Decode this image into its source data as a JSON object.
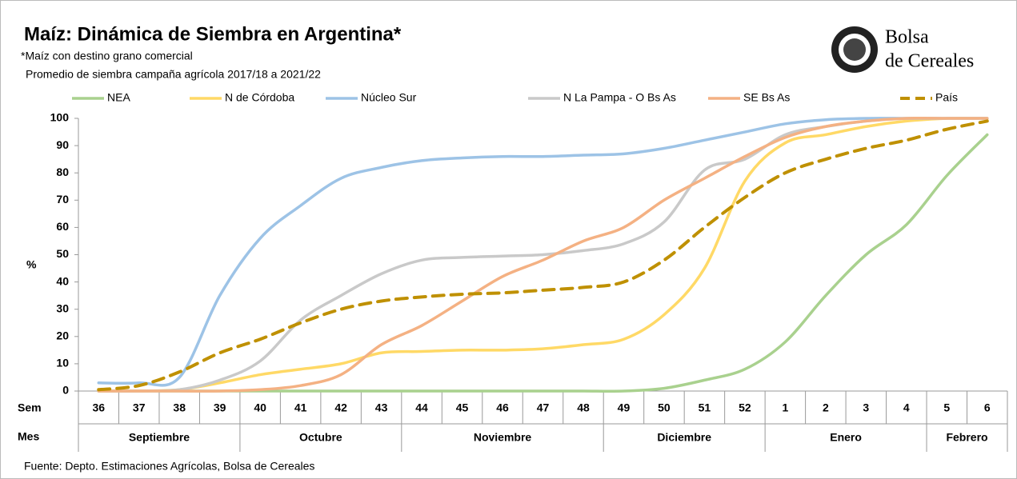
{
  "chart_data": {
    "type": "line",
    "title": "Maíz: Dinámica de Siembra en Argentina*",
    "subtitle": "*Maíz con destino grano comercial",
    "note": "Promedio de siembra campaña agrícola 2017/18  a 2021/22",
    "source": "Fuente: Depto. Estimaciones Agrícolas, Bolsa de Cereales",
    "logo": [
      "Bolsa",
      "de Cereales"
    ],
    "y_label": "%",
    "x_label": "Sem",
    "x2_label": "Mes",
    "categories": [
      "36",
      "37",
      "38",
      "39",
      "40",
      "41",
      "42",
      "43",
      "44",
      "45",
      "46",
      "47",
      "48",
      "49",
      "50",
      "51",
      "52",
      "1",
      "2",
      "3",
      "4",
      "5",
      "6"
    ],
    "x2_categories": [
      "Septiembre",
      "Septiembre",
      "Septiembre",
      "Septiembre",
      "Octubre",
      "Octubre",
      "Octubre",
      "Octubre",
      "Noviembre",
      "Noviembre",
      "Noviembre",
      "Noviembre",
      "Noviembre",
      "Diciembre",
      "Diciembre",
      "Diciembre",
      "Diciembre",
      "Enero",
      "Enero",
      "Enero",
      "Enero",
      "Febrero",
      "Febrero"
    ],
    "ylim": [
      0,
      100
    ],
    "yticks": [
      0,
      10,
      20,
      30,
      40,
      50,
      60,
      70,
      80,
      90,
      100
    ],
    "legend": "top",
    "smooth": true,
    "series": [
      {
        "name": "NEA",
        "color": "#a9d18e",
        "values": [
          0,
          0,
          0,
          0,
          0,
          0,
          0,
          0,
          0,
          0,
          0,
          0,
          0,
          0,
          1,
          4,
          8,
          18,
          35,
          50,
          61,
          79,
          94
        ]
      },
      {
        "name": "N de Córdoba",
        "color": "#ffd966",
        "values": [
          0,
          0,
          0.5,
          3,
          6,
          8,
          10,
          14,
          14.5,
          15,
          15,
          15.5,
          17,
          19,
          28,
          45,
          77,
          91,
          94,
          97,
          99,
          100,
          100
        ]
      },
      {
        "name": "Núcleo Sur",
        "color": "#9dc3e6",
        "values": [
          3,
          3,
          5,
          35,
          56,
          68,
          78,
          82,
          84.5,
          85.5,
          86,
          86,
          86.5,
          87,
          89,
          92,
          95,
          98,
          99.5,
          100,
          100,
          100,
          100
        ]
      },
      {
        "name": "N La Pampa - O Bs As",
        "color": "#c9c9c9",
        "values": [
          0,
          0,
          0.5,
          4,
          11,
          26,
          35,
          43,
          48,
          49,
          49.5,
          50,
          51.5,
          54,
          62,
          81,
          85,
          94,
          97,
          99,
          100,
          100,
          100
        ]
      },
      {
        "name": "SE Bs As",
        "color": "#f4b183",
        "values": [
          0,
          0,
          0,
          0,
          0.5,
          2,
          6,
          17,
          24,
          33,
          42,
          48,
          55,
          60,
          70,
          78,
          86,
          93,
          97,
          99,
          100,
          100,
          100
        ]
      },
      {
        "name": "País",
        "color": "#bf9000",
        "dashed": true,
        "values": [
          0.5,
          2,
          7,
          14,
          19,
          25,
          30,
          33,
          34.5,
          35.5,
          36,
          37,
          38,
          40,
          48,
          60,
          71,
          80,
          85,
          89,
          92,
          96,
          99
        ]
      }
    ]
  }
}
